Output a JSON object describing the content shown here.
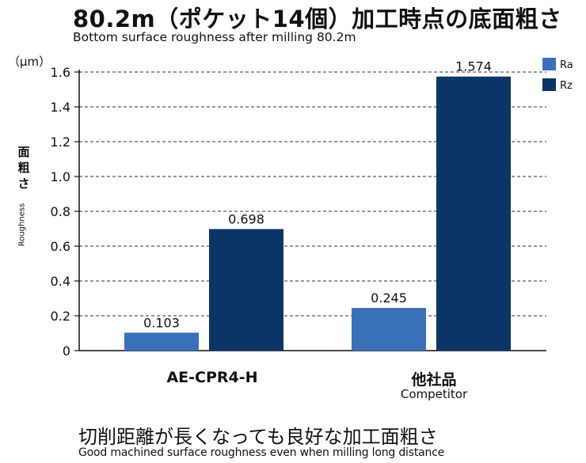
{
  "header": {
    "title_jp": "80.2m（ポケット14個）加工時点の底面粗さ",
    "title_en": "Bottom surface roughness after milling  80.2m"
  },
  "footer": {
    "text_jp": "切削距離が長くなっても良好な加工面粗さ",
    "text_en": "Good machined surface roughness even when milling long distance"
  },
  "chart_data": {
    "type": "bar",
    "unit_label": "（μm）",
    "ylabel_jp": "面粗さ",
    "ylabel_en": "Roughness",
    "categories": [
      "AE-CPR4-H",
      "他社品"
    ],
    "category_sublabels": [
      "",
      "Competitor"
    ],
    "series": [
      {
        "name": "Ra",
        "values": [
          0.103,
          0.245
        ],
        "labels": [
          "0.103",
          "0.245"
        ],
        "color": "#3a70b8"
      },
      {
        "name": "Rz",
        "values": [
          0.698,
          1.574
        ],
        "labels": [
          "0.698",
          "1.574"
        ],
        "color": "#0b3566"
      }
    ],
    "ylim": [
      0,
      1.6
    ],
    "yticks": [
      0,
      0.2,
      0.4,
      0.6,
      0.8,
      1.0,
      1.2,
      1.4,
      1.6
    ],
    "ytick_labels": [
      "0",
      "0.2",
      "0.4",
      "0.6",
      "0.8",
      "1.0",
      "1.2",
      "1.4",
      "1.6"
    ],
    "grid": "dashed horizontal",
    "legend_position": "top-right"
  }
}
